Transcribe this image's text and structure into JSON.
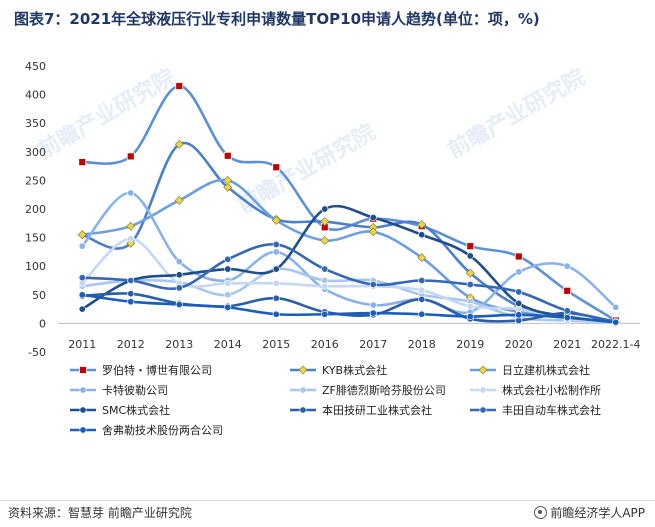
{
  "title": "图表7：2021年全球液压行业专利申请数量TOP10申请人趋势(单位：项，%)",
  "source": "资料来源：智慧芽 前瞻产业研究院",
  "brand": "前瞻经济学人APP",
  "watermark": "前瞻产业研究院",
  "chart_data": {
    "type": "line",
    "categories": [
      "2011",
      "2012",
      "2013",
      "2014",
      "2015",
      "2016",
      "2017",
      "2018",
      "2019",
      "2020",
      "2021",
      "2022.1-4"
    ],
    "ylim": [
      -50,
      450
    ],
    "yticks": [
      -50,
      0,
      50,
      100,
      150,
      200,
      250,
      300,
      350,
      400,
      450
    ],
    "grid": false,
    "legend_position": "bottom",
    "series": [
      {
        "name": "罗伯特・博世有限公司",
        "color": "#5b8fd6",
        "marker": "square-red",
        "values": [
          282,
          292,
          415,
          293,
          273,
          168,
          183,
          170,
          135,
          117,
          57,
          5
        ]
      },
      {
        "name": "KYB株式会社",
        "color": "#4a7fd0",
        "marker": "diamond-yellow",
        "values": [
          155,
          140,
          313,
          238,
          182,
          178,
          168,
          173,
          88,
          30,
          10,
          2
        ]
      },
      {
        "name": "日立建机株式会社",
        "color": "#6c9ee0",
        "marker": "diamond-yellow",
        "values": [
          155,
          170,
          215,
          250,
          180,
          145,
          160,
          115,
          45,
          20,
          10,
          2
        ]
      },
      {
        "name": "卡特彼勒公司",
        "color": "#8ab2ea",
        "marker": "circle",
        "values": [
          135,
          228,
          108,
          75,
          125,
          60,
          32,
          42,
          20,
          90,
          100,
          28
        ]
      },
      {
        "name": "ZF腓德烈斯哈芬股份公司",
        "color": "#a8c6ef",
        "marker": "circle",
        "values": [
          65,
          75,
          72,
          50,
          95,
          75,
          75,
          50,
          38,
          10,
          5,
          2
        ]
      },
      {
        "name": "株式会社小松制作所",
        "color": "#c4d8f4",
        "marker": "circle",
        "values": [
          70,
          148,
          70,
          70,
          70,
          65,
          65,
          58,
          30,
          25,
          8,
          2
        ]
      },
      {
        "name": "SMC株式会社",
        "color": "#1f4e8c",
        "marker": "circle",
        "values": [
          25,
          75,
          85,
          95,
          95,
          200,
          185,
          155,
          118,
          35,
          12,
          2
        ]
      },
      {
        "name": "本田技研工业株式会社",
        "color": "#2a5ea8",
        "marker": "circle",
        "values": [
          48,
          52,
          35,
          30,
          44,
          20,
          15,
          42,
          8,
          5,
          18,
          2
        ]
      },
      {
        "name": "丰田自动车株式会社",
        "color": "#3468b5",
        "marker": "circle",
        "values": [
          80,
          75,
          62,
          112,
          138,
          95,
          68,
          75,
          68,
          55,
          22,
          3
        ]
      },
      {
        "name": "舍弗勒技术股份两合公司",
        "color": "#1a5dbb",
        "marker": "circle",
        "values": [
          50,
          38,
          33,
          28,
          16,
          16,
          18,
          16,
          12,
          15,
          10,
          2
        ]
      }
    ]
  }
}
